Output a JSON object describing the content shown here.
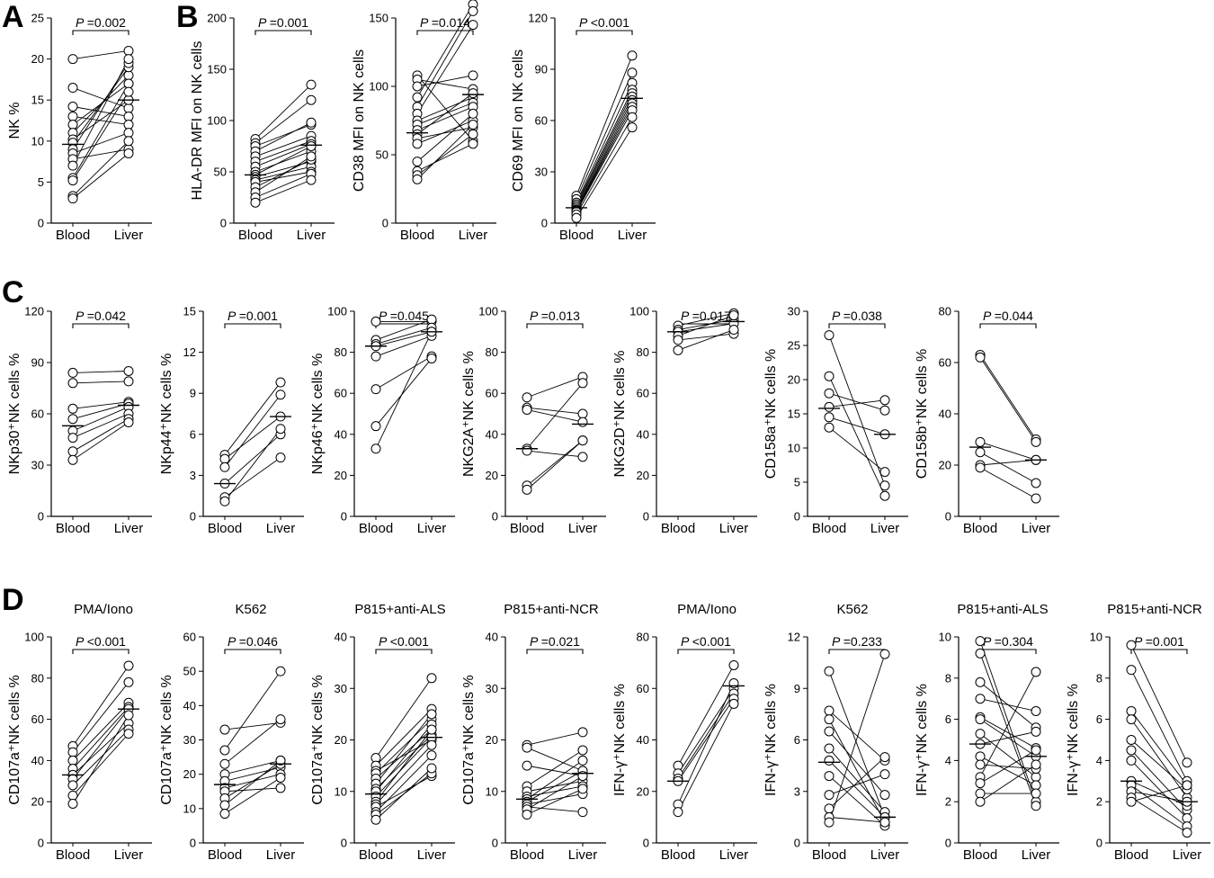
{
  "panel_labels": {
    "a": "A",
    "b": "B",
    "c": "C",
    "d": "D"
  },
  "condition_titles": [
    "PMA/Iono",
    "K562",
    "P815+anti-ALS",
    "P815+anti-NCR",
    "PMA/Iono",
    "K562",
    "P815+anti-ALS",
    "P815+anti-NCR"
  ],
  "chart_data": [
    {
      "id": "A1",
      "type": "scatter",
      "ylabel": "NK %",
      "ylim": [
        0,
        25
      ],
      "ticks": [
        0,
        5,
        10,
        15,
        20,
        25
      ],
      "categories": [
        "Blood",
        "Liver"
      ],
      "p_prefix": "P",
      "p_value": "=0.002",
      "pairs": [
        [
          20,
          21
        ],
        [
          16.5,
          14
        ],
        [
          14.2,
          13
        ],
        [
          13,
          12
        ],
        [
          12,
          17
        ],
        [
          11,
          18
        ],
        [
          10.2,
          15
        ],
        [
          9.8,
          19
        ],
        [
          9,
          19.5
        ],
        [
          8.5,
          11
        ],
        [
          7.8,
          9
        ],
        [
          7,
          20
        ],
        [
          5.5,
          17
        ],
        [
          5.2,
          16
        ],
        [
          3.3,
          10
        ],
        [
          3,
          8.5
        ]
      ],
      "medians": [
        9.6,
        15
      ]
    },
    {
      "id": "B1",
      "type": "scatter",
      "ylabel": "HLA-DR MFI on NK cells",
      "ylim": [
        0,
        200
      ],
      "ticks": [
        0,
        50,
        100,
        150,
        200
      ],
      "categories": [
        "Blood",
        "Liver"
      ],
      "p_prefix": "P",
      "p_value": "=0.001",
      "pairs": [
        [
          82,
          135
        ],
        [
          78,
          120
        ],
        [
          75,
          96
        ],
        [
          70,
          98
        ],
        [
          65,
          85
        ],
        [
          60,
          80
        ],
        [
          55,
          77
        ],
        [
          50,
          70
        ],
        [
          47,
          75
        ],
        [
          45,
          60
        ],
        [
          42,
          55
        ],
        [
          40,
          50
        ],
        [
          35,
          62
        ],
        [
          30,
          65
        ],
        [
          25,
          48
        ],
        [
          20,
          42
        ]
      ],
      "medians": [
        47,
        76
      ]
    },
    {
      "id": "B2",
      "type": "scatter",
      "ylabel": "CD38 MFI on NK cells",
      "ylim": [
        0,
        150
      ],
      "ticks": [
        0,
        50,
        100,
        150
      ],
      "categories": [
        "Blood",
        "Liver"
      ],
      "p_prefix": "P",
      "p_value": "=0.014",
      "pairs": [
        [
          108,
          60
        ],
        [
          105,
          98
        ],
        [
          100,
          108
        ],
        [
          92,
          160
        ],
        [
          85,
          155
        ],
        [
          80,
          145
        ],
        [
          75,
          92
        ],
        [
          72,
          88
        ],
        [
          68,
          85
        ],
        [
          65,
          95
        ],
        [
          62,
          70
        ],
        [
          58,
          75
        ],
        [
          45,
          80
        ],
        [
          38,
          58
        ],
        [
          35,
          65
        ],
        [
          32,
          72
        ]
      ],
      "medians": [
        66,
        94
      ]
    },
    {
      "id": "B3",
      "type": "scatter",
      "ylabel": "CD69 MFI on NK cells",
      "ylim": [
        0,
        120
      ],
      "ticks": [
        0,
        30,
        60,
        90,
        120
      ],
      "categories": [
        "Blood",
        "Liver"
      ],
      "p_prefix": "P",
      "p_value": "<0.001",
      "pairs": [
        [
          16,
          98
        ],
        [
          14,
          88
        ],
        [
          12,
          82
        ],
        [
          11,
          78
        ],
        [
          10,
          76
        ],
        [
          9,
          74
        ],
        [
          8,
          72
        ],
        [
          7.5,
          70
        ],
        [
          7,
          68
        ],
        [
          6.5,
          66
        ],
        [
          5,
          62
        ],
        [
          3,
          56
        ]
      ],
      "medians": [
        9,
        73
      ]
    },
    {
      "id": "C1",
      "type": "scatter",
      "ylabel": "NKp30⁺NK cells %",
      "ylim": [
        0,
        120
      ],
      "ticks": [
        0,
        30,
        60,
        90,
        120
      ],
      "categories": [
        "Blood",
        "Liver"
      ],
      "p_prefix": "P",
      "p_value": "=0.042",
      "pairs": [
        [
          84,
          85
        ],
        [
          78,
          79
        ],
        [
          63,
          67
        ],
        [
          57,
          66
        ],
        [
          50,
          64
        ],
        [
          46,
          60
        ],
        [
          38,
          57
        ],
        [
          33,
          55
        ]
      ],
      "medians": [
        53,
        65
      ]
    },
    {
      "id": "C2",
      "type": "scatter",
      "ylabel": "NKp44⁺NK cells %",
      "ylim": [
        0,
        15
      ],
      "ticks": [
        0,
        3,
        6,
        9,
        12,
        15
      ],
      "categories": [
        "Blood",
        "Liver"
      ],
      "p_prefix": "P",
      "p_value": "=0.001",
      "pairs": [
        [
          4.5,
          9.8
        ],
        [
          4.2,
          7.3
        ],
        [
          3.6,
          8.9
        ],
        [
          2.4,
          6
        ],
        [
          1.4,
          4.3
        ],
        [
          1.1,
          6.4
        ]
      ],
      "medians": [
        2.4,
        7.3
      ]
    },
    {
      "id": "C3",
      "type": "scatter",
      "ylabel": "NKp46⁺NK cells %",
      "ylim": [
        0,
        100
      ],
      "ticks": [
        0,
        20,
        40,
        60,
        80,
        100
      ],
      "categories": [
        "Blood",
        "Liver"
      ],
      "p_prefix": "P",
      "p_value": "=0.045",
      "pairs": [
        [
          95,
          95
        ],
        [
          86,
          96
        ],
        [
          84,
          92
        ],
        [
          83,
          90
        ],
        [
          78,
          88
        ],
        [
          62,
          78
        ],
        [
          44,
          77
        ],
        [
          33,
          90
        ]
      ],
      "medians": [
        83,
        90
      ]
    },
    {
      "id": "C4",
      "type": "scatter",
      "ylabel": "NKG2A⁺NK cells %",
      "ylim": [
        0,
        100
      ],
      "ticks": [
        0,
        20,
        40,
        60,
        80,
        100
      ],
      "categories": [
        "Blood",
        "Liver"
      ],
      "p_prefix": "P",
      "p_value": "=0.013",
      "pairs": [
        [
          58,
          68
        ],
        [
          53,
          50
        ],
        [
          52,
          46
        ],
        [
          33,
          65
        ],
        [
          32,
          29
        ],
        [
          15,
          37
        ],
        [
          13,
          37
        ]
      ],
      "medians": [
        33,
        45
      ]
    },
    {
      "id": "C5",
      "type": "scatter",
      "ylabel": "NKG2D⁺NK cells %",
      "ylim": [
        0,
        100
      ],
      "ticks": [
        0,
        20,
        40,
        60,
        80,
        100
      ],
      "categories": [
        "Blood",
        "Liver"
      ],
      "p_prefix": "P",
      "p_value": "=0.017",
      "pairs": [
        [
          93,
          99
        ],
        [
          91,
          96
        ],
        [
          90,
          94
        ],
        [
          88,
          98
        ],
        [
          86,
          89
        ],
        [
          81,
          91
        ]
      ],
      "medians": [
        90,
        95
      ]
    },
    {
      "id": "C6",
      "type": "scatter",
      "ylabel": "CD158a⁺NK cells %",
      "ylim": [
        0,
        30
      ],
      "ticks": [
        0,
        5,
        10,
        15,
        20,
        25,
        30
      ],
      "categories": [
        "Blood",
        "Liver"
      ],
      "p_prefix": "P",
      "p_value": "=0.038",
      "pairs": [
        [
          26.5,
          4.5
        ],
        [
          20.5,
          3
        ],
        [
          18,
          15.5
        ],
        [
          16,
          17
        ],
        [
          14.5,
          12
        ],
        [
          13,
          6.5
        ]
      ],
      "medians": [
        15.8,
        12
      ]
    },
    {
      "id": "C7",
      "type": "scatter",
      "ylabel": "CD158b⁺NK cells %",
      "ylim": [
        0,
        80
      ],
      "ticks": [
        0,
        20,
        40,
        60,
        80
      ],
      "categories": [
        "Blood",
        "Liver"
      ],
      "p_prefix": "P",
      "p_value": "=0.044",
      "pairs": [
        [
          63,
          30
        ],
        [
          62,
          29
        ],
        [
          29,
          22
        ],
        [
          25,
          13
        ],
        [
          20,
          22
        ],
        [
          19,
          7
        ]
      ],
      "medians": [
        27,
        22
      ]
    },
    {
      "id": "D1",
      "type": "scatter",
      "ylabel": "CD107a⁺NK cells %",
      "ylim": [
        0,
        100
      ],
      "ticks": [
        0,
        20,
        40,
        60,
        80,
        100
      ],
      "categories": [
        "Blood",
        "Liver"
      ],
      "p_prefix": "P",
      "p_value": "<0.001",
      "pairs": [
        [
          47,
          86
        ],
        [
          44,
          78
        ],
        [
          40,
          68
        ],
        [
          36,
          66
        ],
        [
          33,
          58
        ],
        [
          31,
          65
        ],
        [
          28,
          55
        ],
        [
          23,
          53
        ],
        [
          19,
          62
        ]
      ],
      "medians": [
        33,
        65
      ]
    },
    {
      "id": "D2",
      "type": "scatter",
      "ylabel": "CD107a⁺NK cells %",
      "ylim": [
        0,
        60
      ],
      "ticks": [
        0,
        10,
        20,
        30,
        40,
        50,
        60
      ],
      "categories": [
        "Blood",
        "Liver"
      ],
      "p_prefix": "P",
      "p_value": "=0.046",
      "pairs": [
        [
          33,
          35
        ],
        [
          27,
          50
        ],
        [
          23,
          36
        ],
        [
          20,
          24
        ],
        [
          18,
          22
        ],
        [
          16,
          20
        ],
        [
          15,
          16
        ],
        [
          13,
          23
        ],
        [
          11,
          24
        ],
        [
          8.5,
          19
        ]
      ],
      "medians": [
        17,
        23
      ]
    },
    {
      "id": "D3",
      "type": "scatter",
      "ylabel": "CD107a⁺NK cells %",
      "ylim": [
        0,
        40
      ],
      "ticks": [
        0,
        10,
        20,
        30,
        40
      ],
      "categories": [
        "Blood",
        "Liver"
      ],
      "p_prefix": "P",
      "p_value": "<0.001",
      "pairs": [
        [
          16.5,
          32
        ],
        [
          15,
          26
        ],
        [
          14,
          20
        ],
        [
          13.5,
          24
        ],
        [
          12.5,
          22
        ],
        [
          11.5,
          25
        ],
        [
          10.5,
          21
        ],
        [
          10,
          23
        ],
        [
          9,
          20.5
        ],
        [
          8,
          22
        ],
        [
          7.5,
          19
        ],
        [
          7,
          13
        ],
        [
          6,
          17
        ],
        [
          5.5,
          13.5
        ],
        [
          4.5,
          14.5
        ]
      ],
      "medians": [
        9.5,
        20.5
      ]
    },
    {
      "id": "D4",
      "type": "scatter",
      "ylabel": "CD107a⁺NK cells %",
      "ylim": [
        0,
        40
      ],
      "ticks": [
        0,
        10,
        20,
        30,
        40
      ],
      "categories": [
        "Blood",
        "Liver"
      ],
      "p_prefix": "P",
      "p_value": "=0.021",
      "pairs": [
        [
          19,
          21.5
        ],
        [
          18.5,
          14
        ],
        [
          15,
          13
        ],
        [
          11,
          18
        ],
        [
          10,
          12
        ],
        [
          9,
          11
        ],
        [
          8.5,
          16
        ],
        [
          8,
          14
        ],
        [
          7.5,
          9.5
        ],
        [
          7,
          6
        ],
        [
          6.5,
          13
        ],
        [
          5.5,
          10.5
        ]
      ],
      "medians": [
        8.5,
        13.5
      ]
    },
    {
      "id": "D5",
      "type": "scatter",
      "ylabel": "IFN-γ⁺NK cells %",
      "ylim": [
        0,
        80
      ],
      "ticks": [
        0,
        20,
        40,
        60,
        80
      ],
      "categories": [
        "Blood",
        "Liver"
      ],
      "p_prefix": "P",
      "p_value": "<0.001",
      "pairs": [
        [
          30,
          69
        ],
        [
          27,
          60
        ],
        [
          25,
          58
        ],
        [
          24,
          56
        ],
        [
          15,
          62
        ],
        [
          12,
          54
        ]
      ],
      "medians": [
        24,
        61
      ]
    },
    {
      "id": "D6",
      "type": "scatter",
      "ylabel": "IFN-γ⁺NK cells %",
      "ylim": [
        0,
        12
      ],
      "ticks": [
        0,
        3,
        6,
        9,
        12
      ],
      "categories": [
        "Blood",
        "Liver"
      ],
      "p_prefix": "P",
      "p_value": "=0.233",
      "pairs": [
        [
          10,
          1.5
        ],
        [
          7.7,
          4.8
        ],
        [
          7.2,
          1.2
        ],
        [
          6.5,
          2.8
        ],
        [
          5.5,
          1.8
        ],
        [
          4.8,
          1.5
        ],
        [
          3.9,
          1
        ],
        [
          2.8,
          4
        ],
        [
          2,
          5
        ],
        [
          1.5,
          1.2
        ],
        [
          1.2,
          11
        ]
      ],
      "medians": [
        4.7,
        1.5
      ]
    },
    {
      "id": "D7",
      "type": "scatter",
      "ylabel": "IFN-γ⁺NK cells %",
      "ylim": [
        0,
        10
      ],
      "ticks": [
        0,
        2,
        4,
        6,
        8,
        10
      ],
      "categories": [
        "Blood",
        "Liver"
      ],
      "p_prefix": "P",
      "p_value": "=0.304",
      "pairs": [
        [
          9.8,
          2
        ],
        [
          9.2,
          1.8
        ],
        [
          7.8,
          5.6
        ],
        [
          7,
          6.4
        ],
        [
          6.1,
          4.6
        ],
        [
          6,
          4.2
        ],
        [
          5.3,
          3.2
        ],
        [
          4.8,
          5.4
        ],
        [
          4.2,
          2.8
        ],
        [
          3.8,
          3.6
        ],
        [
          3.2,
          8.3
        ],
        [
          2.9,
          4.5
        ],
        [
          2.4,
          2.4
        ],
        [
          2,
          3.8
        ]
      ],
      "medians": [
        4.8,
        4.2
      ]
    },
    {
      "id": "D8",
      "type": "scatter",
      "ylabel": "IFN-γ⁺NK cells %",
      "ylim": [
        0,
        10
      ],
      "ticks": [
        0,
        2,
        4,
        6,
        8,
        10
      ],
      "categories": [
        "Blood",
        "Liver"
      ],
      "p_prefix": "P",
      "p_value": "=0.001",
      "pairs": [
        [
          9.6,
          3.9
        ],
        [
          8.4,
          3
        ],
        [
          6.4,
          2.8
        ],
        [
          6,
          2.2
        ],
        [
          5,
          2.6
        ],
        [
          4.5,
          1.6
        ],
        [
          4,
          1.2
        ],
        [
          3,
          1.8
        ],
        [
          2.8,
          0.8
        ],
        [
          2.5,
          2
        ],
        [
          2.2,
          0.5
        ],
        [
          2,
          2.8
        ]
      ],
      "medians": [
        3,
        2
      ]
    }
  ]
}
